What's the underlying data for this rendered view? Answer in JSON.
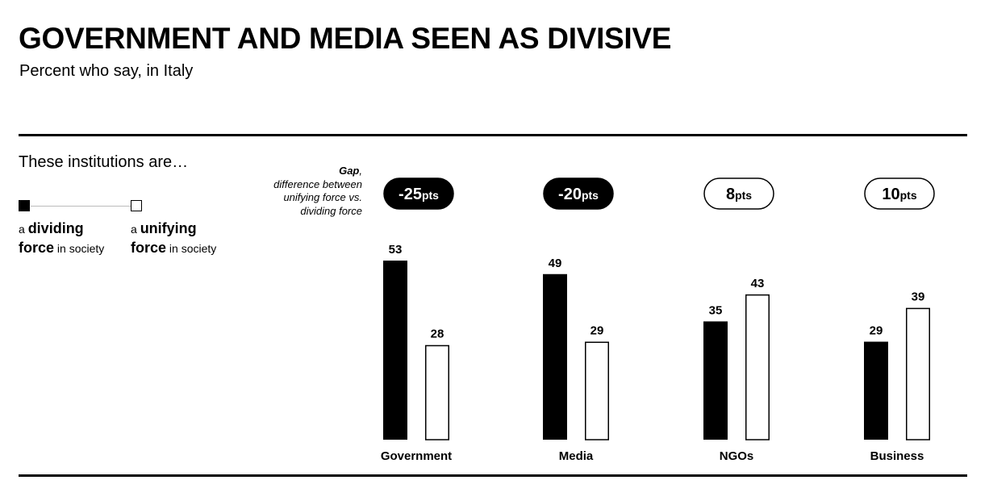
{
  "header": {
    "title": "GOVERNMENT AND MEDIA SEEN AS DIVISIVE",
    "subtitle": "Percent who say, in Italy"
  },
  "legend": {
    "heading": "These institutions are…",
    "dividing": {
      "a": "a",
      "word": "dividing",
      "force": "force",
      "rest": "in society"
    },
    "unifying": {
      "a": "a",
      "word": "unifying",
      "force": "force",
      "rest": "in society"
    }
  },
  "gap_note": {
    "bold": "Gap",
    "comma": ",",
    "line1": "difference between",
    "line2": "unifying force vs.",
    "line3": "dividing force"
  },
  "colors": {
    "dividing": "#000000",
    "unifying": "#ffffff",
    "outline": "#000000"
  },
  "chart_data": {
    "type": "bar",
    "categories": [
      "Government",
      "Media",
      "NGOs",
      "Business"
    ],
    "series": [
      {
        "name": "a dividing force in society",
        "values": [
          53,
          49,
          35,
          29
        ]
      },
      {
        "name": "a unifying force in society",
        "values": [
          28,
          29,
          43,
          39
        ]
      }
    ],
    "gaps": [
      {
        "value": "-25",
        "unit": "pts",
        "style": "filled"
      },
      {
        "value": "-20",
        "unit": "pts",
        "style": "filled"
      },
      {
        "value": "8",
        "unit": "pts",
        "style": "outline"
      },
      {
        "value": "10",
        "unit": "pts",
        "style": "outline"
      }
    ],
    "ylim": [
      0,
      53
    ],
    "grid": false,
    "legend_position": "top-left"
  }
}
